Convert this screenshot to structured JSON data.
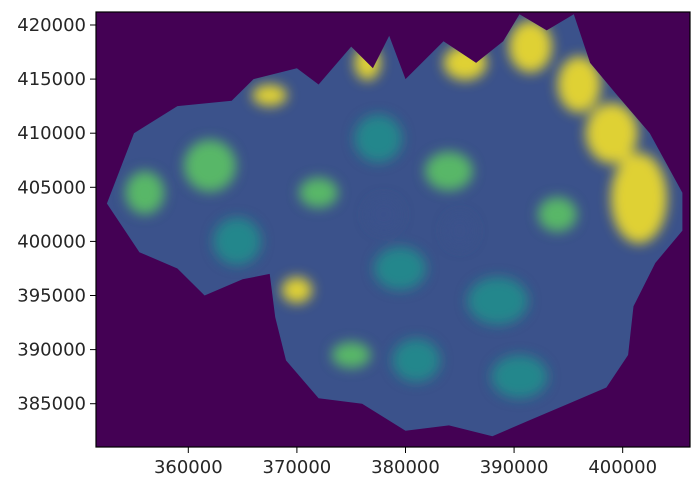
{
  "chart_data": {
    "type": "heatmap",
    "title": "",
    "xlabel": "",
    "ylabel": "",
    "xlim": [
      351500,
      406200
    ],
    "ylim": [
      381000,
      421200
    ],
    "xticks": [
      360000,
      370000,
      380000,
      390000,
      400000
    ],
    "xtick_labels": [
      "360000",
      "370000",
      "380000",
      "390000",
      "400000"
    ],
    "yticks": [
      385000,
      390000,
      395000,
      400000,
      405000,
      410000,
      415000,
      420000
    ],
    "ytick_labels": [
      "385000",
      "390000",
      "395000",
      "400000",
      "405000",
      "410000",
      "415000",
      "420000"
    ],
    "colormap": "viridis",
    "colors": {
      "background": "#440154",
      "low": "#3b528b",
      "mid": "#21918c",
      "high": "#5ec962",
      "max": "#fde725"
    },
    "region_outline": [
      [
        352500,
        403500
      ],
      [
        355000,
        410000
      ],
      [
        359000,
        412500
      ],
      [
        364000,
        413000
      ],
      [
        366000,
        415000
      ],
      [
        370000,
        416000
      ],
      [
        372000,
        414500
      ],
      [
        375000,
        418000
      ],
      [
        377000,
        416000
      ],
      [
        378500,
        419000
      ],
      [
        380000,
        415000
      ],
      [
        383500,
        418500
      ],
      [
        386500,
        416500
      ],
      [
        389000,
        418500
      ],
      [
        390500,
        421000
      ],
      [
        393000,
        419500
      ],
      [
        395500,
        421000
      ],
      [
        397000,
        416500
      ],
      [
        399500,
        413500
      ],
      [
        402500,
        410000
      ],
      [
        405500,
        404500
      ],
      [
        405500,
        401000
      ],
      [
        403000,
        398000
      ],
      [
        401000,
        394000
      ],
      [
        400500,
        389500
      ],
      [
        398500,
        386500
      ],
      [
        395000,
        385000
      ],
      [
        391500,
        383500
      ],
      [
        388000,
        382000
      ],
      [
        384000,
        383000
      ],
      [
        380000,
        382500
      ],
      [
        376000,
        385000
      ],
      [
        372000,
        385500
      ],
      [
        369000,
        389000
      ],
      [
        368000,
        393000
      ],
      [
        367500,
        397000
      ],
      [
        365000,
        396500
      ],
      [
        361500,
        395000
      ],
      [
        359000,
        397500
      ],
      [
        355500,
        399000
      ]
    ],
    "hotspots": [
      {
        "x": 401500,
        "y": 404000,
        "rx": 2600,
        "ry": 4200,
        "level": "max"
      },
      {
        "x": 399000,
        "y": 410000,
        "rx": 2400,
        "ry": 2800,
        "level": "max"
      },
      {
        "x": 396000,
        "y": 414500,
        "rx": 2000,
        "ry": 2600,
        "level": "max"
      },
      {
        "x": 391500,
        "y": 418000,
        "rx": 2000,
        "ry": 2400,
        "level": "max"
      },
      {
        "x": 385500,
        "y": 416500,
        "rx": 2000,
        "ry": 1600,
        "level": "max"
      },
      {
        "x": 367500,
        "y": 413500,
        "rx": 1600,
        "ry": 1000,
        "level": "max"
      },
      {
        "x": 376500,
        "y": 416500,
        "rx": 1200,
        "ry": 1600,
        "level": "max"
      },
      {
        "x": 370000,
        "y": 395500,
        "rx": 1400,
        "ry": 1200,
        "level": "max"
      },
      {
        "x": 375000,
        "y": 389500,
        "rx": 1800,
        "ry": 1200,
        "level": "high"
      },
      {
        "x": 362000,
        "y": 407000,
        "rx": 2400,
        "ry": 2400,
        "level": "high"
      },
      {
        "x": 372000,
        "y": 404500,
        "rx": 1800,
        "ry": 1400,
        "level": "high"
      },
      {
        "x": 384000,
        "y": 406500,
        "rx": 2200,
        "ry": 1800,
        "level": "high"
      },
      {
        "x": 394000,
        "y": 402500,
        "rx": 1800,
        "ry": 1600,
        "level": "high"
      },
      {
        "x": 356000,
        "y": 404500,
        "rx": 1800,
        "ry": 2000,
        "level": "high"
      },
      {
        "x": 379500,
        "y": 397500,
        "rx": 2400,
        "ry": 2000,
        "level": "mid"
      },
      {
        "x": 388500,
        "y": 394500,
        "rx": 2800,
        "ry": 2200,
        "level": "mid"
      },
      {
        "x": 390500,
        "y": 387500,
        "rx": 2600,
        "ry": 2000,
        "level": "mid"
      },
      {
        "x": 381000,
        "y": 389000,
        "rx": 2200,
        "ry": 2000,
        "level": "mid"
      },
      {
        "x": 364500,
        "y": 400000,
        "rx": 2200,
        "ry": 2200,
        "level": "mid"
      },
      {
        "x": 377500,
        "y": 409500,
        "rx": 2200,
        "ry": 2200,
        "level": "mid"
      },
      {
        "x": 385000,
        "y": 401000,
        "rx": 1400,
        "ry": 1600,
        "level": "low"
      },
      {
        "x": 378000,
        "y": 402500,
        "rx": 1600,
        "ry": 1600,
        "level": "low"
      }
    ]
  }
}
